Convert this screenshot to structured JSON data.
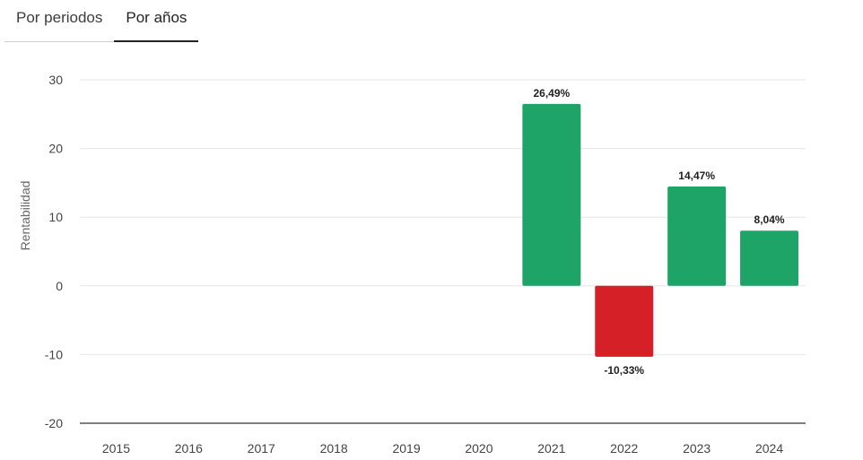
{
  "tabs": [
    {
      "label": "Por periodos",
      "active": false
    },
    {
      "label": "Por años",
      "active": true
    }
  ],
  "chart_data": {
    "type": "bar",
    "title": "",
    "xlabel": "",
    "ylabel": "Rentabilidad",
    "ylim": [
      -20,
      30
    ],
    "yticks": [
      30,
      20,
      10,
      0,
      -10,
      -20
    ],
    "categories": [
      "2015",
      "2016",
      "2017",
      "2018",
      "2019",
      "2020",
      "2021",
      "2022",
      "2023",
      "2024"
    ],
    "values": [
      null,
      null,
      null,
      null,
      null,
      null,
      26.49,
      -10.33,
      14.47,
      8.04
    ],
    "data_labels": [
      "",
      "",
      "",
      "",
      "",
      "",
      "26,49%",
      "-10,33%",
      "14,47%",
      "8,04%"
    ],
    "grid": true,
    "colors": {
      "positive": "#1fa468",
      "negative": "#d42026",
      "grid": "#e6e6e6",
      "baseline": "#333333"
    }
  }
}
